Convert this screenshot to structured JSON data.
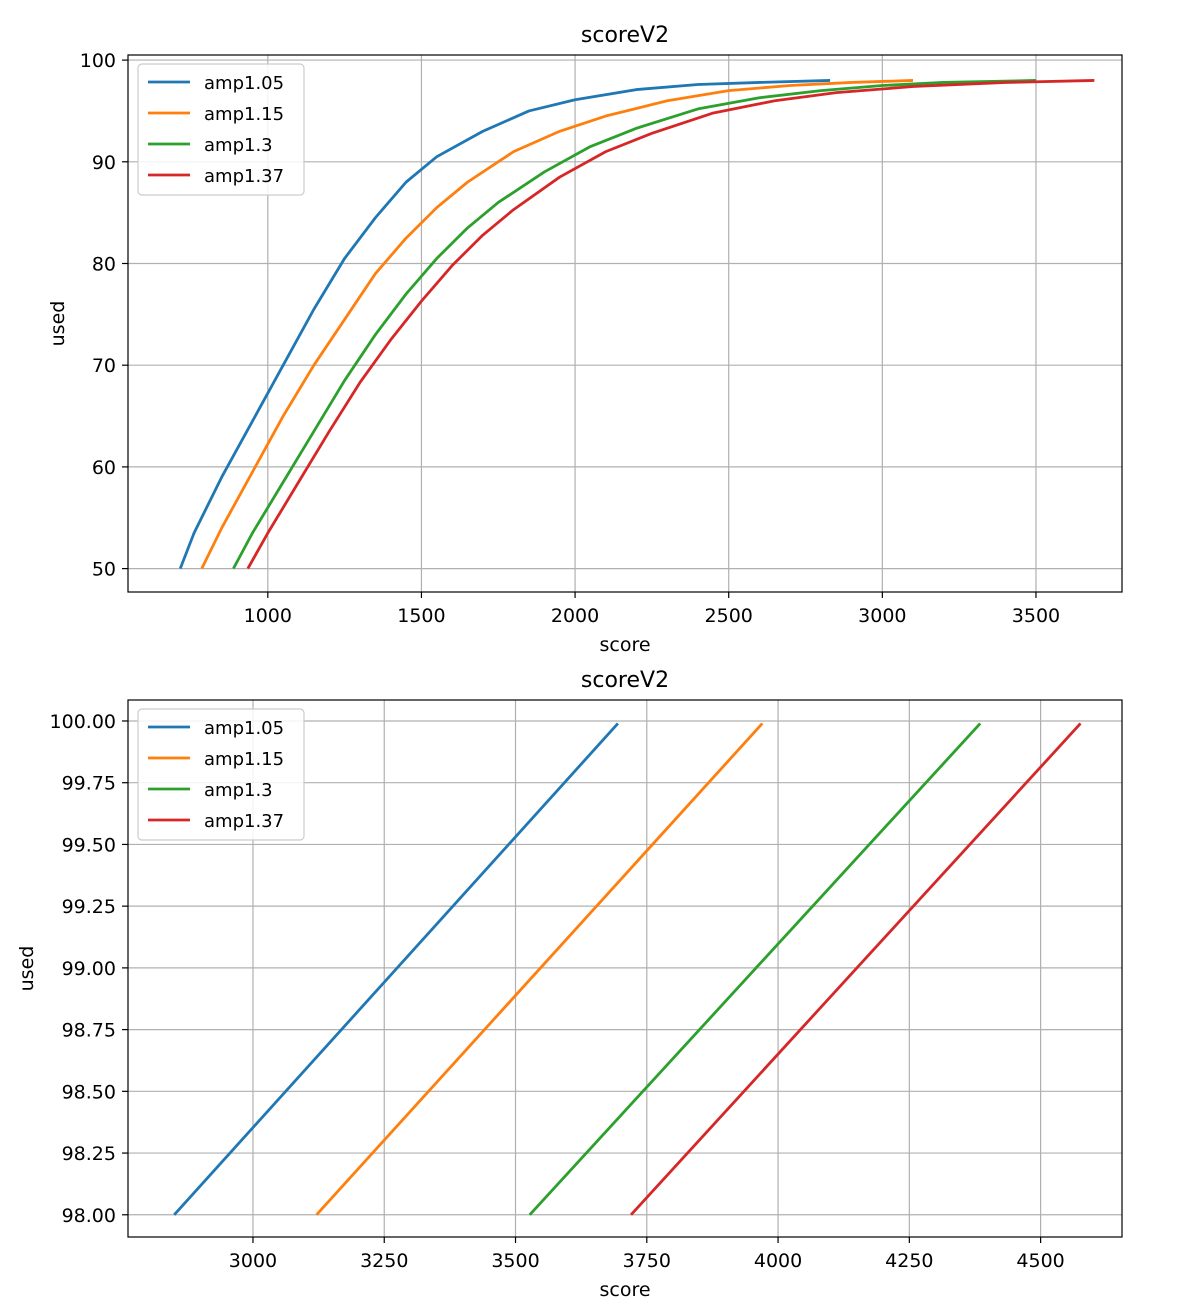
{
  "chart_data": [
    {
      "type": "line",
      "title": "scoreV2",
      "xlabel": "score",
      "ylabel": "used",
      "xlim": [
        545,
        3780
      ],
      "ylim": [
        47.7,
        100.5
      ],
      "xticks": [
        1000,
        1500,
        2000,
        2500,
        3000,
        3500
      ],
      "yticks": [
        50,
        60,
        70,
        80,
        90,
        100
      ],
      "xtick_labels": [
        "1000",
        "1500",
        "2000",
        "2500",
        "3000",
        "3500"
      ],
      "ytick_labels": [
        "50",
        "60",
        "70",
        "80",
        "90",
        "100"
      ],
      "grid": true,
      "legend_position": "upper-left",
      "series": [
        {
          "name": "amp1.05",
          "color": "#1f77b4",
          "x": [
            715,
            760,
            850,
            950,
            1050,
            1150,
            1250,
            1350,
            1450,
            1550,
            1700,
            1850,
            2000,
            2200,
            2400,
            2600,
            2830
          ],
          "y": [
            50,
            53.5,
            59,
            64.5,
            70,
            75.5,
            80.5,
            84.5,
            88,
            90.5,
            93,
            95,
            96.1,
            97.1,
            97.6,
            97.8,
            98
          ]
        },
        {
          "name": "amp1.15",
          "color": "#ff7f0e",
          "x": [
            785,
            850,
            950,
            1050,
            1150,
            1250,
            1350,
            1450,
            1550,
            1650,
            1800,
            1950,
            2100,
            2300,
            2500,
            2700,
            2900,
            3100
          ],
          "y": [
            50,
            54,
            59.5,
            65,
            70,
            74.5,
            79,
            82.5,
            85.5,
            88,
            91,
            93,
            94.5,
            96,
            97,
            97.5,
            97.8,
            98
          ]
        },
        {
          "name": "amp1.3",
          "color": "#2ca02c",
          "x": [
            888,
            950,
            1050,
            1150,
            1250,
            1350,
            1450,
            1550,
            1650,
            1750,
            1900,
            2050,
            2200,
            2400,
            2600,
            2800,
            3000,
            3200,
            3500
          ],
          "y": [
            50,
            53.5,
            58.5,
            63.5,
            68.5,
            73,
            77,
            80.5,
            83.5,
            86,
            89,
            91.5,
            93.3,
            95.2,
            96.3,
            97,
            97.5,
            97.8,
            98
          ]
        },
        {
          "name": "amp1.37",
          "color": "#d62728",
          "x": [
            935,
            1000,
            1100,
            1200,
            1300,
            1400,
            1500,
            1600,
            1700,
            1800,
            1950,
            2100,
            2250,
            2450,
            2650,
            2850,
            3100,
            3400,
            3690
          ],
          "y": [
            50,
            53.5,
            58.5,
            63.5,
            68.3,
            72.5,
            76.3,
            79.8,
            82.8,
            85.3,
            88.5,
            91,
            92.8,
            94.8,
            96,
            96.8,
            97.4,
            97.8,
            98
          ]
        }
      ]
    },
    {
      "type": "line",
      "title": "scoreV2",
      "xlabel": "score",
      "ylabel": "used",
      "xlim": [
        2762,
        4655
      ],
      "ylim": [
        97.91,
        100.085
      ],
      "xticks": [
        3000,
        3250,
        3500,
        3750,
        4000,
        4250,
        4500
      ],
      "yticks": [
        98.0,
        98.25,
        98.5,
        98.75,
        99.0,
        99.25,
        99.5,
        99.75,
        100.0
      ],
      "xtick_labels": [
        "3000",
        "3250",
        "3500",
        "3750",
        "4000",
        "4250",
        "4500"
      ],
      "ytick_labels": [
        "98.00",
        "98.25",
        "98.50",
        "98.75",
        "99.00",
        "99.25",
        "99.50",
        "99.75",
        "100.00"
      ],
      "grid": true,
      "legend_position": "upper-left",
      "series": [
        {
          "name": "amp1.05",
          "color": "#1f77b4",
          "x": [
            2850,
            3695
          ],
          "y": [
            98.0,
            99.99
          ]
        },
        {
          "name": "amp1.15",
          "color": "#ff7f0e",
          "x": [
            3121,
            3970
          ],
          "y": [
            98.0,
            99.99
          ]
        },
        {
          "name": "amp1.3",
          "color": "#2ca02c",
          "x": [
            3527,
            4385
          ],
          "y": [
            98.0,
            99.99
          ]
        },
        {
          "name": "amp1.37",
          "color": "#d62728",
          "x": [
            3720,
            4576
          ],
          "y": [
            98.0,
            99.99
          ]
        }
      ]
    }
  ]
}
